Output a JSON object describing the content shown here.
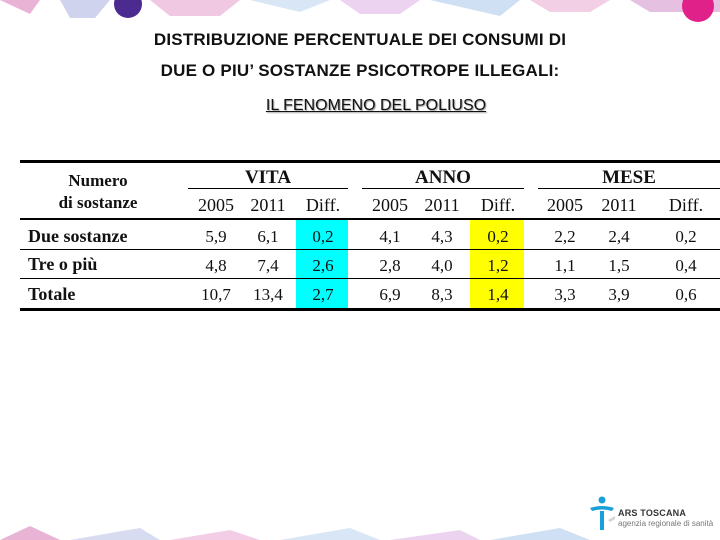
{
  "slide": {
    "title_line1": "DISTRIBUZIONE PERCENTUALE DEI CONSUMI DI",
    "title_line2": "DUE O PIU’ SOSTANZE PSICOTROPE ILLEGALI:",
    "subtitle": "IL FENOMENO DEL POLIUSO"
  },
  "table": {
    "corner_header_line1": "Numero",
    "corner_header_line2": "di sostanze",
    "groups": [
      "VITA",
      "ANNO",
      "MESE"
    ],
    "subheaders": [
      "2005",
      "2011",
      "Diff."
    ],
    "rows": [
      {
        "label": "Due sostanze",
        "values": [
          "5,9",
          "6,1",
          "0,2",
          "4,1",
          "4,3",
          "0,2",
          "2,2",
          "2,4",
          "0,2"
        ]
      },
      {
        "label": "Tre o più",
        "values": [
          "4,8",
          "7,4",
          "2,6",
          "2,8",
          "4,0",
          "1,2",
          "1,1",
          "1,5",
          "0,4"
        ]
      },
      {
        "label": "Totale",
        "values": [
          "10,7",
          "13,4",
          "2,7",
          "6,9",
          "8,3",
          "1,4",
          "3,3",
          "3,9",
          "0,6"
        ]
      }
    ],
    "highlight_colors": {
      "vita_diff": "#00ffff",
      "anno_diff": "#ffff00"
    }
  },
  "logo": {
    "text_line1": "ARS TOSCANA",
    "text_line2": "agenzia regionale di sanità",
    "color": "#1aa0d8"
  }
}
